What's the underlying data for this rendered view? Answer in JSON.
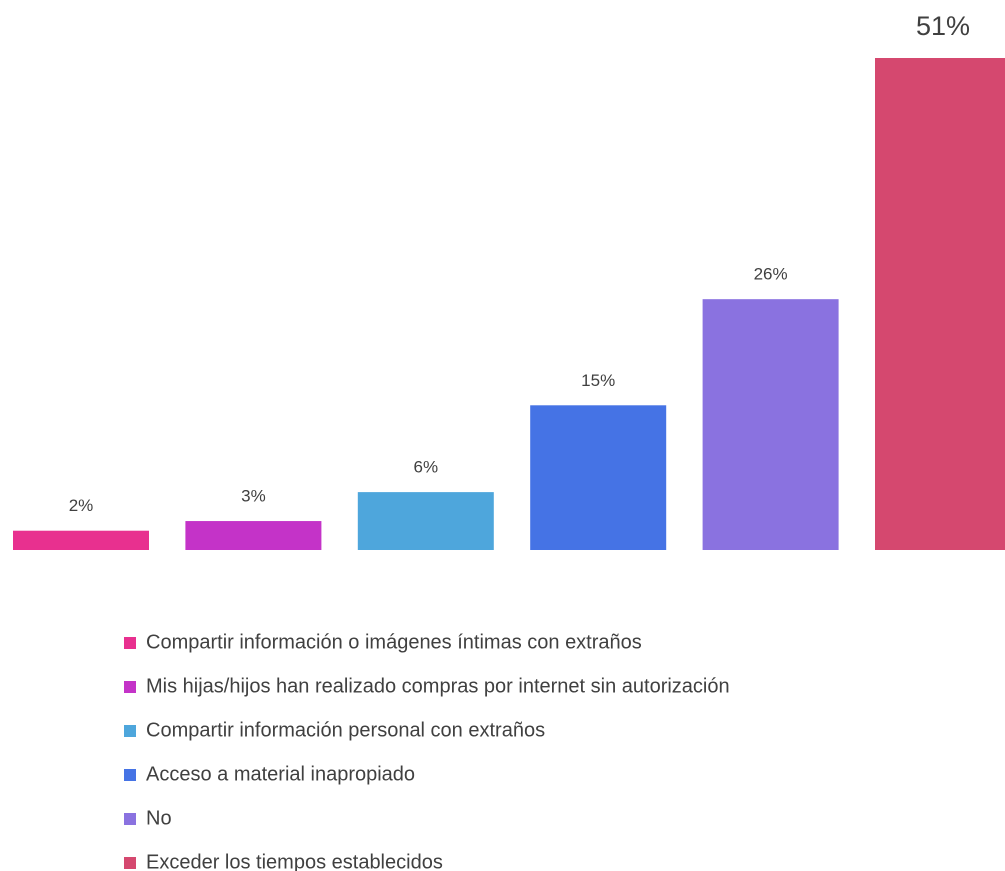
{
  "chart_data": {
    "type": "bar",
    "series": [
      {
        "name": "Compartir información o imágenes íntimas con extraños",
        "color": "#e8308f",
        "values": [
          2
        ],
        "value_labels": [
          "2%"
        ]
      },
      {
        "name": "Mis hijas/hijos han realizado compras por internet sin autorización",
        "color": "#c433c8",
        "values": [
          3
        ],
        "value_labels": [
          "3%"
        ]
      },
      {
        "name": "Compartir información personal con extraños",
        "color": "#4ea6dc",
        "values": [
          6
        ],
        "value_labels": [
          "6%"
        ]
      },
      {
        "name": "Acceso a material inapropiado",
        "color": "#4573e5",
        "values": [
          15
        ],
        "value_labels": [
          "15%"
        ]
      },
      {
        "name": "No",
        "color": "#8a72e0",
        "values": [
          26
        ],
        "value_labels": [
          "26%"
        ]
      },
      {
        "name": "Exceder los tiempos establecidos",
        "color": "#d5486f",
        "values": [
          51
        ],
        "value_labels": [
          "51%"
        ]
      }
    ]
  }
}
